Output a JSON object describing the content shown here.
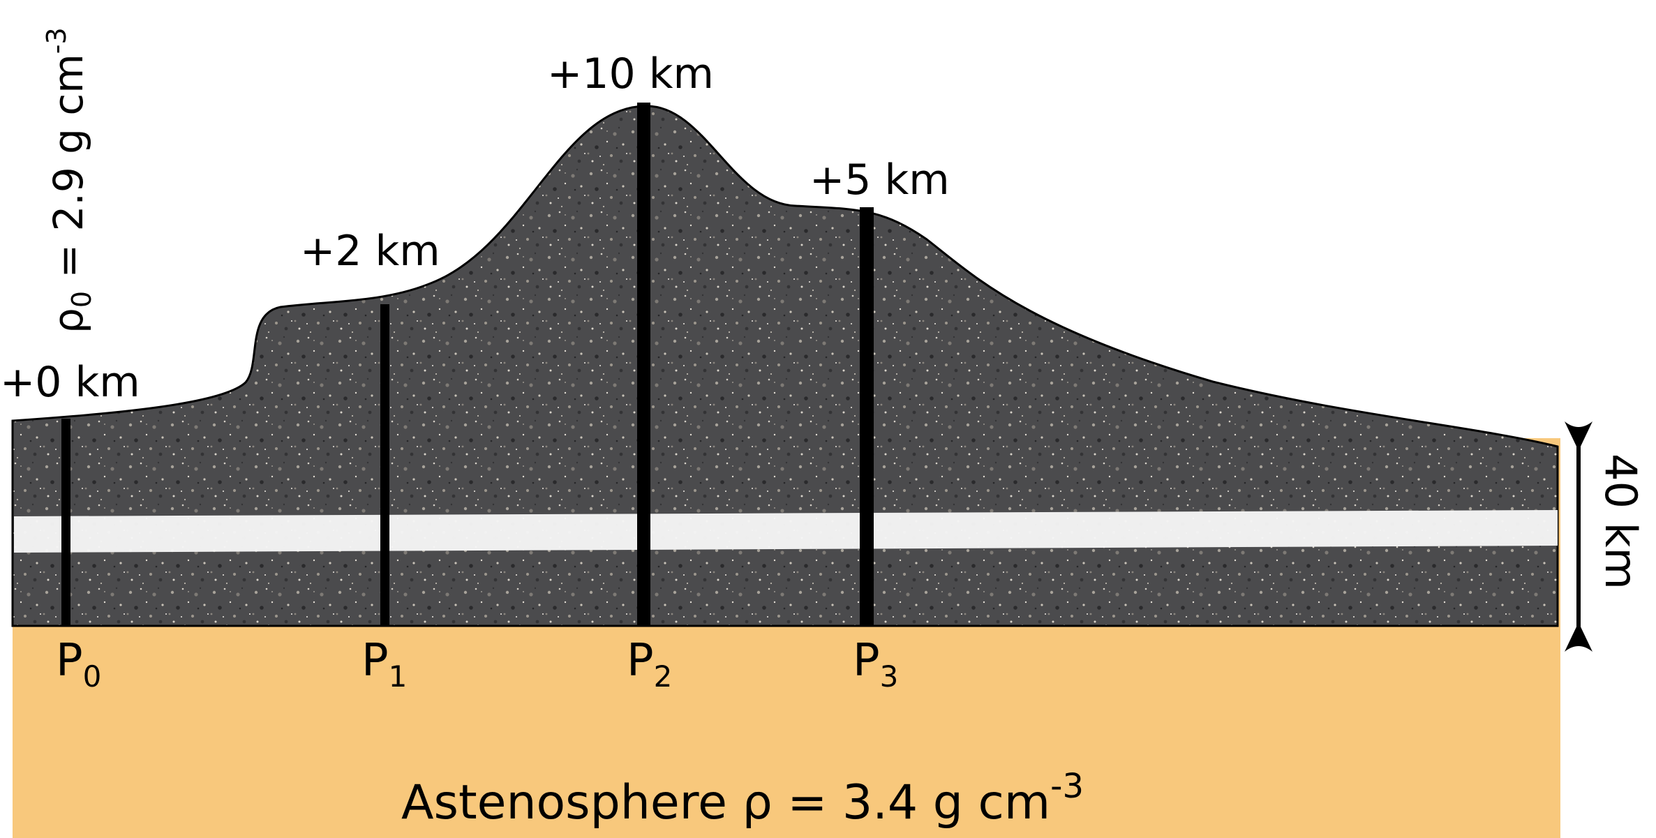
{
  "columns": [
    {
      "id": "p0",
      "name": "P",
      "subscript": "0",
      "elevation": "+0 km"
    },
    {
      "id": "p1",
      "name": "P",
      "subscript": "1",
      "elevation": "+2 km"
    },
    {
      "id": "p2",
      "name": "P",
      "subscript": "2",
      "elevation": "+10 km"
    },
    {
      "id": "p3",
      "name": "P",
      "subscript": "3",
      "elevation": "+5 km"
    }
  ],
  "crust_density": {
    "symbol": "ρ",
    "subscript": "0",
    "value": " = 2.9 g cm",
    "exponent": "-3"
  },
  "thickness_label": "40 km",
  "asthenosphere": {
    "text": "Astenosphere ρ = 3.4 g cm",
    "exponent": "-3"
  },
  "colors": {
    "asthenosphere": "#f8c87c",
    "crust": "#4a4a4c",
    "reference_band": "#f6f6f6",
    "outline": "#000000"
  }
}
